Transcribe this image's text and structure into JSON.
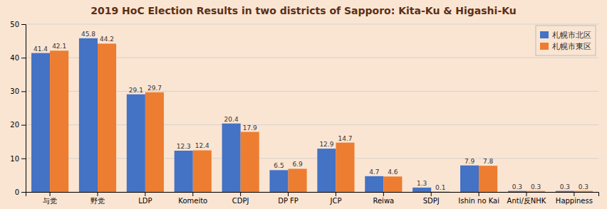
{
  "chart_data": {
    "type": "bar",
    "title": "2019 HoC Election Results in two districts of Sapporo: Kita-Ku & Higashi-Ku",
    "categories": [
      "与党",
      "野党",
      "LDP",
      "Komeito",
      "CDPJ",
      "DP FP",
      "JCP",
      "Reiwa",
      "SDPJ",
      "Ishin no Kai",
      "Anti/反NHK",
      "Happiness"
    ],
    "series": [
      {
        "name": "札幌市北区",
        "color": "#4472C4",
        "values": [
          41.4,
          45.8,
          29.1,
          12.3,
          20.4,
          6.5,
          12.9,
          4.7,
          1.3,
          7.9,
          0.3,
          0.3
        ]
      },
      {
        "name": "札幌市東区",
        "color": "#ED7D31",
        "values": [
          42.1,
          44.2,
          29.7,
          12.4,
          17.9,
          6.9,
          14.7,
          4.6,
          0.1,
          7.8,
          0.3,
          0.3
        ]
      }
    ],
    "ylim": [
      0,
      50
    ],
    "yticks": [
      0,
      10,
      20,
      30,
      40,
      50
    ],
    "grid": true,
    "data_labels": true,
    "legend": "upper right"
  }
}
